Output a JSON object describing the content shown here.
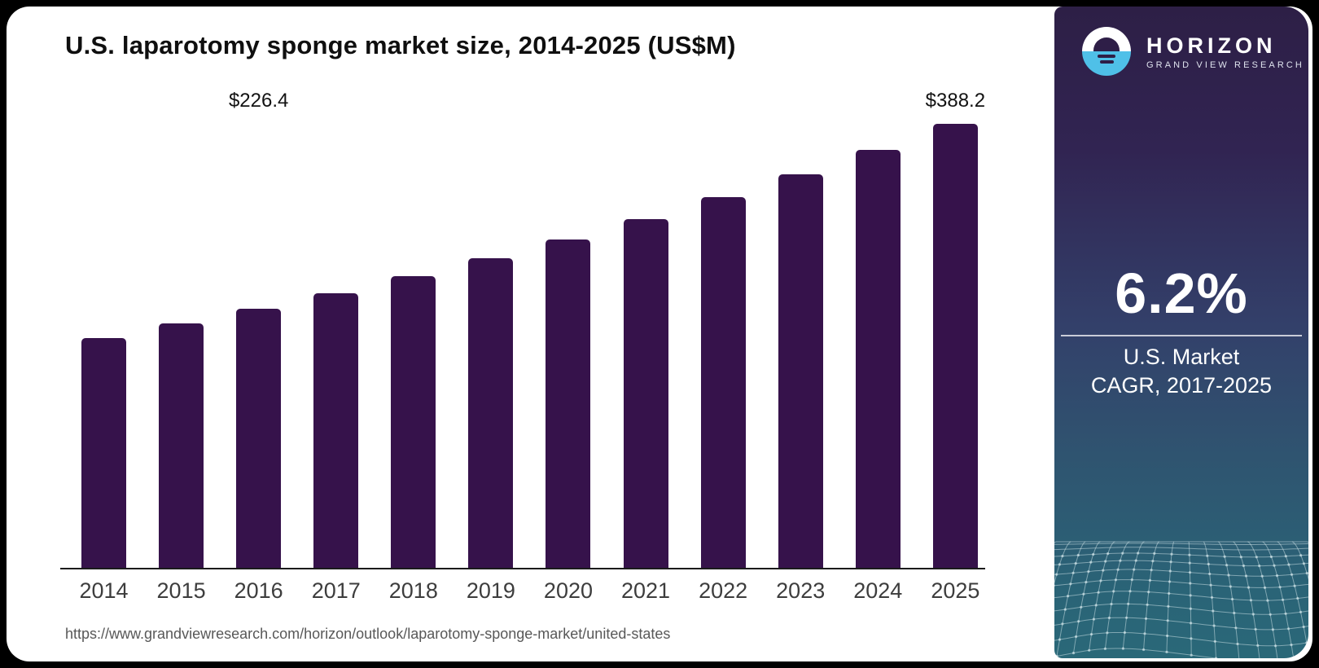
{
  "chart": {
    "title": "U.S. laparotomy sponge market size, 2014-2025 (US$M)",
    "source_url": "https://www.grandviewresearch.com/horizon/outlook/laparotomy-sponge-market/united-states"
  },
  "chart_data": {
    "type": "bar",
    "title": "U.S. laparotomy sponge market size, 2014-2025 (US$M)",
    "categories": [
      "2014",
      "2015",
      "2016",
      "2017",
      "2018",
      "2019",
      "2020",
      "2021",
      "2022",
      "2023",
      "2024",
      "2025"
    ],
    "values": [
      201.2,
      213.5,
      226.4,
      239.9,
      254.8,
      270.6,
      287.4,
      305.2,
      324.1,
      344.2,
      365.5,
      388.2
    ],
    "data_labels": [
      null,
      null,
      "$226.4",
      null,
      null,
      null,
      null,
      null,
      null,
      null,
      null,
      "$388.2"
    ],
    "ylim": [
      0,
      400
    ],
    "xlabel": "",
    "ylabel": "",
    "grid": false,
    "legend": "none",
    "bar_color": "#36124b",
    "value_prefix": "$",
    "unit": "US$M"
  },
  "side_panel": {
    "logo": {
      "brand": "HORIZON",
      "sub_brand": "GRAND VIEW RESEARCH"
    },
    "cagr_value": "6.2%",
    "caption_line1": "U.S. Market",
    "caption_line2": "CAGR, 2017-2025",
    "colors": {
      "panel_top": "#2d1f46",
      "panel_mid": "#33406a",
      "panel_bottom": "#2a6878",
      "logo_blue": "#4fc0e8",
      "bar": "#36124b"
    }
  }
}
